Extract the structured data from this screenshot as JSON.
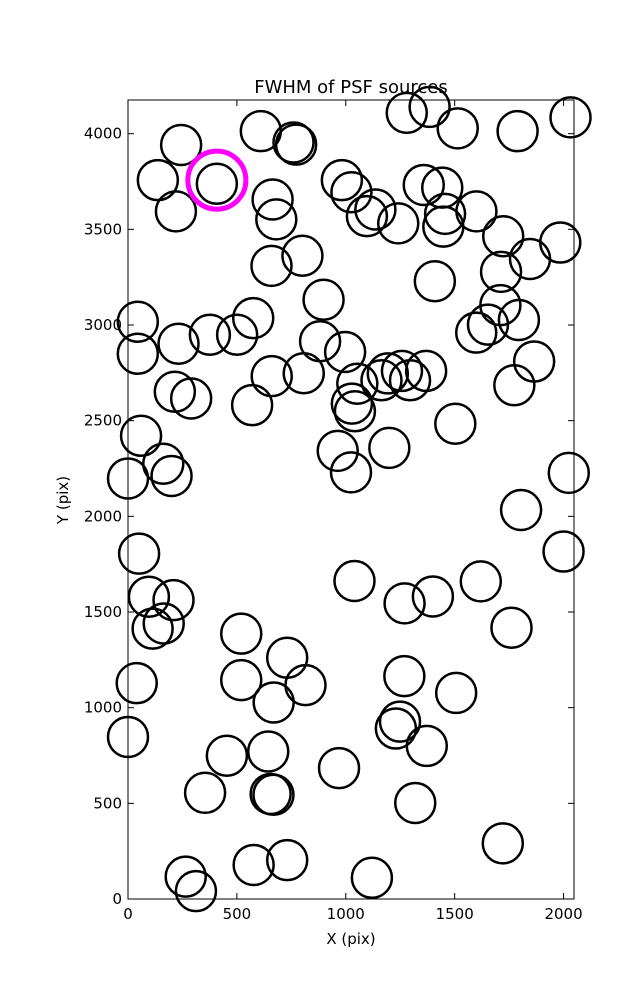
{
  "chart_data": {
    "type": "scatter",
    "title": "FWHM of PSF sources",
    "xlabel": "X (pix)",
    "ylabel": "Y (pix)",
    "xlim": [
      0,
      2048
    ],
    "ylim": [
      0,
      4176
    ],
    "xticks": [
      0,
      500,
      1000,
      1500,
      2000
    ],
    "yticks": [
      0,
      500,
      1000,
      1500,
      2000,
      2500,
      3000,
      3500,
      4000
    ],
    "grid": false,
    "marker_color": "#000000",
    "highlight_color": "#ff00ff",
    "highlight": {
      "x": 408,
      "y": 3757
    },
    "points": [
      {
        "x": 244,
        "y": 3941
      },
      {
        "x": 610,
        "y": 4013
      },
      {
        "x": 760,
        "y": 3954
      },
      {
        "x": 772,
        "y": 3943
      },
      {
        "x": 1280,
        "y": 4109
      },
      {
        "x": 1385,
        "y": 4140
      },
      {
        "x": 1514,
        "y": 4028
      },
      {
        "x": 1789,
        "y": 4013
      },
      {
        "x": 2032,
        "y": 4085
      },
      {
        "x": 137,
        "y": 3757
      },
      {
        "x": 408,
        "y": 3738
      },
      {
        "x": 220,
        "y": 3594
      },
      {
        "x": 664,
        "y": 3656
      },
      {
        "x": 681,
        "y": 3552
      },
      {
        "x": 982,
        "y": 3757
      },
      {
        "x": 1026,
        "y": 3694
      },
      {
        "x": 1097,
        "y": 3569
      },
      {
        "x": 1136,
        "y": 3604
      },
      {
        "x": 1241,
        "y": 3531
      },
      {
        "x": 1358,
        "y": 3732
      },
      {
        "x": 1443,
        "y": 3718
      },
      {
        "x": 1456,
        "y": 3581
      },
      {
        "x": 1448,
        "y": 3514
      },
      {
        "x": 1600,
        "y": 3594
      },
      {
        "x": 1723,
        "y": 3464
      },
      {
        "x": 1713,
        "y": 3278
      },
      {
        "x": 1846,
        "y": 3345
      },
      {
        "x": 1985,
        "y": 3431
      },
      {
        "x": 659,
        "y": 3309
      },
      {
        "x": 801,
        "y": 3362
      },
      {
        "x": 898,
        "y": 3132
      },
      {
        "x": 1409,
        "y": 3229
      },
      {
        "x": 45,
        "y": 3017
      },
      {
        "x": 45,
        "y": 2850
      },
      {
        "x": 232,
        "y": 2902
      },
      {
        "x": 376,
        "y": 2949
      },
      {
        "x": 501,
        "y": 2949
      },
      {
        "x": 575,
        "y": 3036
      },
      {
        "x": 882,
        "y": 2915
      },
      {
        "x": 997,
        "y": 2859
      },
      {
        "x": 1599,
        "y": 2960
      },
      {
        "x": 1653,
        "y": 3002
      },
      {
        "x": 1710,
        "y": 3104
      },
      {
        "x": 1795,
        "y": 3026
      },
      {
        "x": 1865,
        "y": 2809
      },
      {
        "x": 1774,
        "y": 2685
      },
      {
        "x": 215,
        "y": 2651
      },
      {
        "x": 290,
        "y": 2616
      },
      {
        "x": 660,
        "y": 2733
      },
      {
        "x": 807,
        "y": 2748
      },
      {
        "x": 1053,
        "y": 2693
      },
      {
        "x": 1164,
        "y": 2711
      },
      {
        "x": 1193,
        "y": 2747
      },
      {
        "x": 1258,
        "y": 2760
      },
      {
        "x": 1295,
        "y": 2711
      },
      {
        "x": 1369,
        "y": 2760
      },
      {
        "x": 570,
        "y": 2581
      },
      {
        "x": 1028,
        "y": 2589
      },
      {
        "x": 1042,
        "y": 2549
      },
      {
        "x": 1503,
        "y": 2484
      },
      {
        "x": 60,
        "y": 2421
      },
      {
        "x": 162,
        "y": 2275
      },
      {
        "x": 200,
        "y": 2211
      },
      {
        "x": 0,
        "y": 2198
      },
      {
        "x": 963,
        "y": 2342
      },
      {
        "x": 1024,
        "y": 2230
      },
      {
        "x": 1200,
        "y": 2358
      },
      {
        "x": 1805,
        "y": 2033
      },
      {
        "x": 2024,
        "y": 2227
      },
      {
        "x": 2000,
        "y": 1816
      },
      {
        "x": 51,
        "y": 1805
      },
      {
        "x": 96,
        "y": 1580
      },
      {
        "x": 209,
        "y": 1562
      },
      {
        "x": 113,
        "y": 1413
      },
      {
        "x": 164,
        "y": 1440
      },
      {
        "x": 1040,
        "y": 1662
      },
      {
        "x": 1270,
        "y": 1545
      },
      {
        "x": 1400,
        "y": 1581
      },
      {
        "x": 1620,
        "y": 1660
      },
      {
        "x": 1761,
        "y": 1418
      },
      {
        "x": 520,
        "y": 1387
      },
      {
        "x": 731,
        "y": 1261
      },
      {
        "x": 520,
        "y": 1144
      },
      {
        "x": 669,
        "y": 1027
      },
      {
        "x": 815,
        "y": 1118
      },
      {
        "x": 40,
        "y": 1128
      },
      {
        "x": 0,
        "y": 847
      },
      {
        "x": 1269,
        "y": 1165
      },
      {
        "x": 1507,
        "y": 1077
      },
      {
        "x": 1249,
        "y": 927
      },
      {
        "x": 1230,
        "y": 891
      },
      {
        "x": 1372,
        "y": 800
      },
      {
        "x": 454,
        "y": 749
      },
      {
        "x": 644,
        "y": 771
      },
      {
        "x": 655,
        "y": 549
      },
      {
        "x": 668,
        "y": 545
      },
      {
        "x": 969,
        "y": 684
      },
      {
        "x": 1319,
        "y": 502
      },
      {
        "x": 354,
        "y": 555
      },
      {
        "x": 577,
        "y": 178
      },
      {
        "x": 731,
        "y": 203
      },
      {
        "x": 265,
        "y": 117
      },
      {
        "x": 312,
        "y": 41
      },
      {
        "x": 1120,
        "y": 111
      },
      {
        "x": 1721,
        "y": 291
      }
    ]
  }
}
